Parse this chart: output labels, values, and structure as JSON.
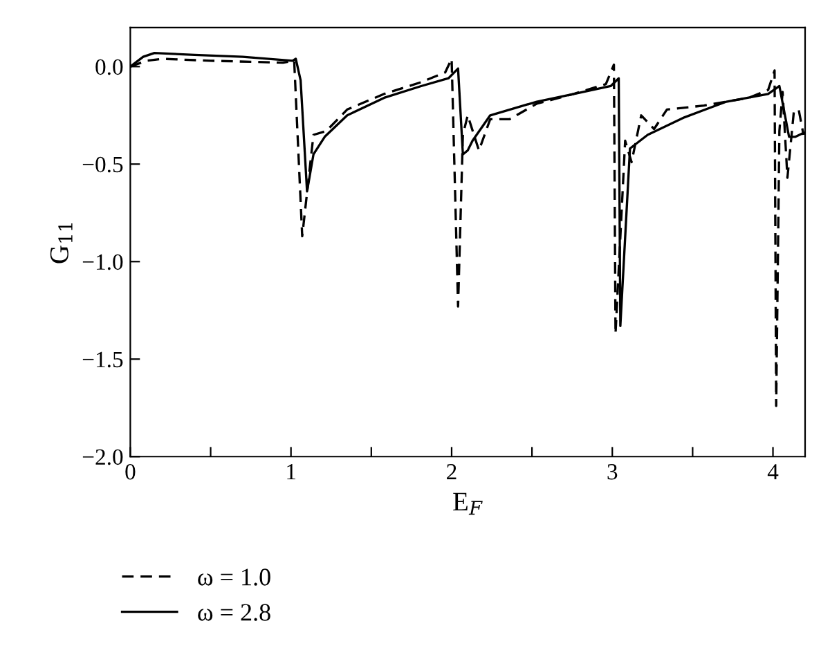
{
  "chart_data": {
    "type": "line",
    "xlabel": "E$_{F}$",
    "ylabel": "G$_{11}$",
    "xlim": [
      0,
      4.2
    ],
    "ylim": [
      -2.0,
      0.2
    ],
    "xticks": [
      0,
      {
        "value": 0.5,
        "label": null
      },
      1,
      {
        "value": 1.5,
        "label": null
      },
      2,
      {
        "value": 2.5,
        "label": null
      },
      3,
      {
        "value": 3.5,
        "label": null
      },
      4
    ],
    "yticks": [
      {
        "value": -2.0,
        "label": "−2.0"
      },
      {
        "value": -1.5,
        "label": "−1.5"
      },
      {
        "value": -1.0,
        "label": "−1.0"
      },
      {
        "value": -0.5,
        "label": "−0.5"
      },
      {
        "value": 0.0,
        "label": "0.0"
      }
    ],
    "grid": false,
    "legend": "bottom left",
    "marker": "none",
    "series": [
      {
        "name": "ω = 1.0",
        "color": "#000000",
        "line_style": "dashed",
        "x": [
          0,
          0.1,
          0.2,
          0.5,
          0.95,
          1.02,
          1.07,
          1.14,
          1.22,
          1.35,
          1.58,
          1.81,
          1.96,
          2.0,
          2.04,
          2.07,
          2.1,
          2.17,
          2.24,
          2.36,
          2.53,
          2.76,
          2.96,
          3.01,
          3.02,
          3.08,
          3.12,
          3.18,
          3.26,
          3.34,
          3.57,
          3.85,
          3.97,
          4.01,
          4.02,
          4.04,
          4.06,
          4.09,
          4.13,
          4.16,
          4.19
        ],
        "values": [
          0.0,
          0.03,
          0.04,
          0.03,
          0.02,
          0.03,
          -0.87,
          -0.35,
          -0.33,
          -0.22,
          -0.14,
          -0.08,
          -0.03,
          0.04,
          -1.23,
          -0.35,
          -0.25,
          -0.43,
          -0.27,
          -0.27,
          -0.19,
          -0.14,
          -0.09,
          0.01,
          -1.37,
          -0.38,
          -0.49,
          -0.25,
          -0.32,
          -0.22,
          -0.2,
          -0.16,
          -0.12,
          -0.02,
          -1.74,
          -0.33,
          -0.13,
          -0.57,
          -0.23,
          -0.22,
          -0.35
        ]
      },
      {
        "name": "ω = 2.8",
        "color": "#000000",
        "line_style": "solid",
        "x": [
          0,
          0.08,
          0.15,
          0.4,
          0.7,
          1.01,
          1.03,
          1.06,
          1.1,
          1.14,
          1.21,
          1.35,
          1.58,
          1.81,
          1.98,
          2.04,
          2.07,
          2.1,
          2.13,
          2.24,
          2.53,
          2.76,
          2.99,
          3.04,
          3.05,
          3.11,
          3.22,
          3.45,
          3.71,
          3.97,
          4.04,
          4.1,
          4.14,
          4.19
        ],
        "values": [
          0.0,
          0.05,
          0.07,
          0.06,
          0.05,
          0.03,
          0.04,
          -0.07,
          -0.64,
          -0.45,
          -0.36,
          -0.25,
          -0.16,
          -0.1,
          -0.06,
          -0.01,
          -0.45,
          -0.43,
          -0.38,
          -0.25,
          -0.18,
          -0.14,
          -0.1,
          -0.06,
          -1.33,
          -0.42,
          -0.35,
          -0.26,
          -0.18,
          -0.14,
          -0.1,
          -0.36,
          -0.36,
          -0.34
        ]
      }
    ]
  }
}
